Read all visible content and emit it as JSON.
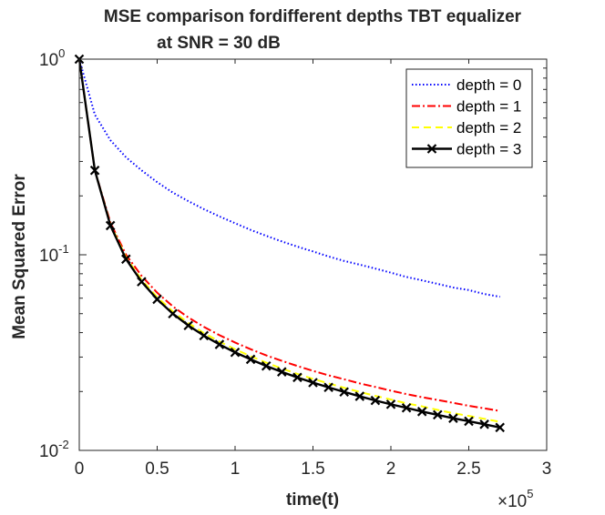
{
  "chart_data": {
    "type": "line",
    "title_lines": [
      "MSE comparison fordifferent depths TBT equalizer",
      "at SNR = 30 dB"
    ],
    "xlabel": "time(t)",
    "ylabel": "Mean Squared Error",
    "x_multiplier": {
      "base": "×10",
      "exponent": "5"
    },
    "xlim": [
      0,
      300000
    ],
    "ylim": [
      0.01,
      1
    ],
    "yscale": "log",
    "x_ticks": [
      {
        "value": 0,
        "label": "0"
      },
      {
        "value": 50000,
        "label": "0.5"
      },
      {
        "value": 100000,
        "label": "1"
      },
      {
        "value": 150000,
        "label": "1.5"
      },
      {
        "value": 200000,
        "label": "2"
      },
      {
        "value": 250000,
        "label": "2.5"
      },
      {
        "value": 300000,
        "label": "3"
      }
    ],
    "y_ticks": [
      {
        "value": 1,
        "base": "10",
        "exponent": "0"
      },
      {
        "value": 0.1,
        "base": "10",
        "exponent": "-1"
      },
      {
        "value": 0.01,
        "base": "10",
        "exponent": "-2"
      }
    ],
    "legend_position": "top-right",
    "x": [
      0,
      10000,
      20000,
      30000,
      40000,
      50000,
      60000,
      70000,
      80000,
      90000,
      100000,
      110000,
      120000,
      130000,
      140000,
      150000,
      160000,
      170000,
      180000,
      190000,
      200000,
      210000,
      220000,
      230000,
      240000,
      250000,
      260000,
      270000
    ],
    "series": [
      {
        "name": "depth = 0",
        "color": "#0000ff",
        "style": "dotted",
        "marker": "none",
        "values": [
          1.0,
          0.52,
          0.385,
          0.315,
          0.27,
          0.235,
          0.208,
          0.188,
          0.171,
          0.157,
          0.145,
          0.134,
          0.125,
          0.117,
          0.11,
          0.104,
          0.098,
          0.093,
          0.089,
          0.085,
          0.081,
          0.077,
          0.074,
          0.071,
          0.068,
          0.066,
          0.063,
          0.061
        ]
      },
      {
        "name": "depth = 1",
        "color": "#ff0000",
        "style": "dashdot",
        "marker": "none",
        "values": [
          1.0,
          0.27,
          0.146,
          0.1,
          0.078,
          0.064,
          0.0545,
          0.0478,
          0.0428,
          0.0388,
          0.0356,
          0.0329,
          0.0306,
          0.0287,
          0.027,
          0.0255,
          0.0242,
          0.0231,
          0.022,
          0.0211,
          0.0202,
          0.0194,
          0.0187,
          0.0181,
          0.0175,
          0.0169,
          0.0164,
          0.0159
        ]
      },
      {
        "name": "depth = 2",
        "color": "#ffff00",
        "style": "dashed",
        "marker": "none",
        "values": [
          1.0,
          0.27,
          0.143,
          0.097,
          0.0745,
          0.0607,
          0.0514,
          0.0448,
          0.0398,
          0.036,
          0.0329,
          0.0303,
          0.0281,
          0.0262,
          0.0246,
          0.0232,
          0.022,
          0.0209,
          0.0199,
          0.019,
          0.0182,
          0.0174,
          0.0168,
          0.0161,
          0.0155,
          0.015,
          0.0145,
          0.014
        ]
      },
      {
        "name": "depth = 3",
        "color": "#000000",
        "style": "solid",
        "marker": "x",
        "values": [
          1.0,
          0.27,
          0.141,
          0.095,
          0.0728,
          0.0592,
          0.05,
          0.0435,
          0.0386,
          0.0348,
          0.0317,
          0.0292,
          0.027,
          0.0252,
          0.0236,
          0.0222,
          0.021,
          0.0199,
          0.0189,
          0.018,
          0.0172,
          0.0165,
          0.0158,
          0.0152,
          0.0146,
          0.0141,
          0.0136,
          0.0131
        ]
      }
    ]
  }
}
